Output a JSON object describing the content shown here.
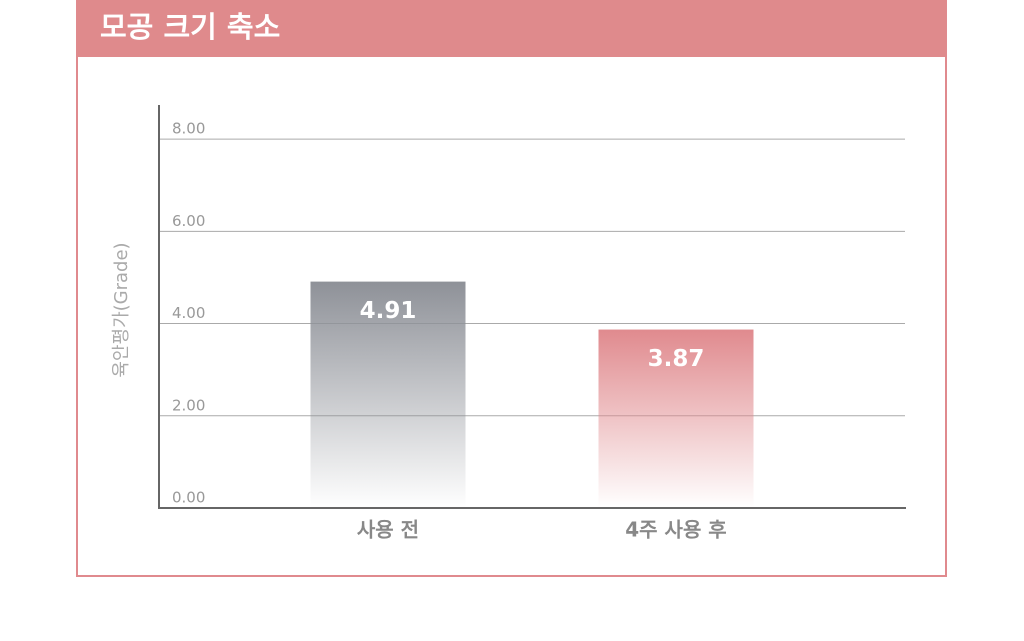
{
  "chart_data": {
    "type": "bar",
    "title": "모공 크기 축소",
    "y_label": "육안평가(Grade)",
    "categories": [
      "사용 전",
      "4주 사용 후"
    ],
    "values": [
      4.91,
      3.87
    ],
    "colors": [
      "#8e9198",
      "#e08a8e"
    ],
    "ylim": [
      0,
      8.74
    ],
    "yticks": [
      {
        "value": 0,
        "label": "0.00"
      },
      {
        "value": 2,
        "label": "2.00"
      },
      {
        "value": 4,
        "label": "4.00"
      },
      {
        "value": 6,
        "label": "6.00"
      },
      {
        "value": 8,
        "label": "8.00"
      }
    ],
    "grid": true
  }
}
